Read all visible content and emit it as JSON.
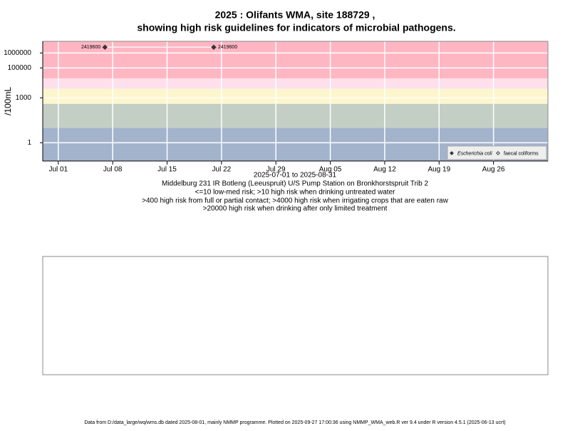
{
  "chart_data": {
    "type": "line",
    "title": [
      "2025 : Olifants WMA, site 188729 ,",
      "showing high risk guidelines for indicators of microbial pathogens."
    ],
    "y_label": "/100mL",
    "x_label": "2025-07-01 to 2025-08-31",
    "captions": [
      "Middelburg 231 IR Botleng (Leeuspruit) U/S Pump Station on Bronkhorstspruit Trib 2",
      "<=10 low-med risk; >10 high risk when drinking untreated water",
      ">400 high risk from full or partial contact; >4000 high risk when irrigating crops that are eaten raw",
      ">20000 high risk when drinking after only limited treatment"
    ],
    "log_y": true,
    "grid": true,
    "legend": "bottom-right",
    "xlim": [
      "2025-06-29",
      "2025-09-02"
    ],
    "xticks": [
      {
        "value": "2025-07-01",
        "label": "Jul 01"
      },
      {
        "value": "2025-07-08",
        "label": "Jul 08"
      },
      {
        "value": "2025-07-15",
        "label": "Jul 15"
      },
      {
        "value": "2025-07-22",
        "label": "Jul 22"
      },
      {
        "value": "2025-07-29",
        "label": "Jul 29"
      },
      {
        "value": "2025-08-05",
        "label": "Aug 05"
      },
      {
        "value": "2025-08-12",
        "label": "Aug 12"
      },
      {
        "value": "2025-08-19",
        "label": "Aug 19"
      },
      {
        "value": "2025-08-26",
        "label": "Aug 26"
      }
    ],
    "ylim": [
      0.06,
      6000000
    ],
    "yticks": [
      1,
      1000,
      100000,
      1000000
    ],
    "risk_thresholds": [
      10,
      400,
      4000,
      20000
    ],
    "band_colors": [
      "#a3b3cc",
      "#c3cfc4",
      "#fdf6cc",
      "#fde0ec",
      "#ffb6c3"
    ],
    "series": [
      {
        "name": "Escherichia coli",
        "color": "#333333",
        "marker": "filled-diamond",
        "x": [
          "2025-07-07",
          "2025-07-21"
        ],
        "values": [
          2419600,
          2419600
        ]
      },
      {
        "name": "faecal coliforms",
        "color": "#333333",
        "marker": "open-diamond",
        "x": [],
        "values": []
      }
    ],
    "footer": "Data from D:/data_large/wq/wms.db dated 2025-08-01, mainly NMMP programme. Plotted on 2025-09-27 17:00:36 using NMMP_WMA_web.R ver 9.4 under R version 4.5.1 (2025-06-13 ucrt)"
  }
}
